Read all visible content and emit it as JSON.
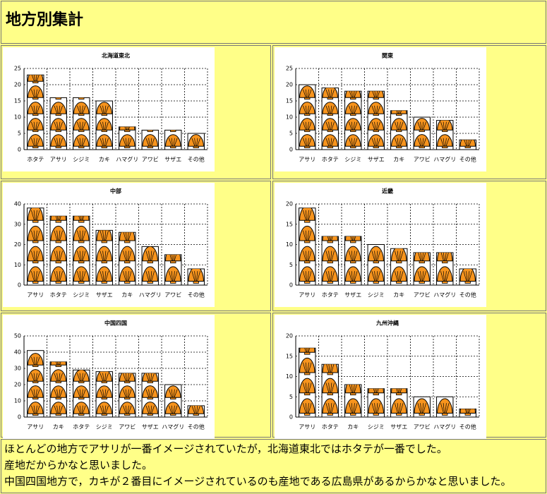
{
  "header": {
    "title": "地方別集計"
  },
  "chart_data": [
    {
      "type": "bar",
      "title": "北海道東北",
      "categories": [
        "ホタテ",
        "アサリ",
        "シジミ",
        "カキ",
        "ハマグリ",
        "アワビ",
        "サザエ",
        "その他"
      ],
      "values": [
        23,
        16,
        16,
        15,
        7,
        6,
        6,
        5
      ],
      "ylim": [
        0,
        25
      ],
      "yticks": [
        0,
        5,
        10,
        15,
        20,
        25
      ],
      "grid": true,
      "color": "#f7941d"
    },
    {
      "type": "bar",
      "title": "関東",
      "categories": [
        "アサリ",
        "ホタテ",
        "シジミ",
        "サザエ",
        "カキ",
        "アワビ",
        "ハマグリ",
        "その他"
      ],
      "values": [
        20,
        19,
        18,
        18,
        12,
        10,
        9,
        3
      ],
      "ylim": [
        0,
        25
      ],
      "yticks": [
        0,
        5,
        10,
        15,
        20,
        25
      ],
      "grid": true,
      "color": "#f7941d"
    },
    {
      "type": "bar",
      "title": "中部",
      "categories": [
        "アサリ",
        "ホタテ",
        "シジミ",
        "サザエ",
        "カキ",
        "ハマグリ",
        "アワビ",
        "その他"
      ],
      "values": [
        38,
        34,
        34,
        27,
        26,
        19,
        15,
        8
      ],
      "ylim": [
        0,
        40
      ],
      "yticks": [
        0,
        10,
        20,
        30,
        40
      ],
      "grid": true,
      "color": "#f7941d"
    },
    {
      "type": "bar",
      "title": "近畿",
      "categories": [
        "アサリ",
        "ホタテ",
        "サザエ",
        "シジミ",
        "カキ",
        "アワビ",
        "ハマグリ",
        "その他"
      ],
      "values": [
        19,
        12,
        12,
        10,
        9,
        8,
        8,
        4
      ],
      "ylim": [
        0,
        20
      ],
      "yticks": [
        0,
        5,
        10,
        15,
        20
      ],
      "grid": true,
      "color": "#f7941d"
    },
    {
      "type": "bar",
      "title": "中国四国",
      "categories": [
        "アサリ",
        "カキ",
        "ホタテ",
        "シジミ",
        "アワビ",
        "サザエ",
        "ハマグリ",
        "その他"
      ],
      "values": [
        41,
        34,
        29,
        28,
        27,
        27,
        20,
        7
      ],
      "ylim": [
        0,
        50
      ],
      "yticks": [
        0,
        10,
        20,
        30,
        40,
        50
      ],
      "grid": true,
      "color": "#f7941d"
    },
    {
      "type": "bar",
      "title": "九州沖縄",
      "categories": [
        "アサリ",
        "ホタテ",
        "カキ",
        "シジミ",
        "サザエ",
        "アワビ",
        "ハマグリ",
        "その他"
      ],
      "values": [
        17,
        13,
        8,
        7,
        7,
        5,
        5,
        2
      ],
      "ylim": [
        0,
        20
      ],
      "yticks": [
        0,
        5,
        10,
        15,
        20
      ],
      "grid": true,
      "color": "#f7941d"
    }
  ],
  "footer": {
    "lines": [
      "ほとんどの地方でアサリが一番イメージされていたが，北海道東北ではホタテが一番でした。",
      "産地だからかなと思いました。",
      "中国四国地方で，カキが２番目にイメージされているのも産地である広島県があるからかなと思いました。"
    ]
  }
}
